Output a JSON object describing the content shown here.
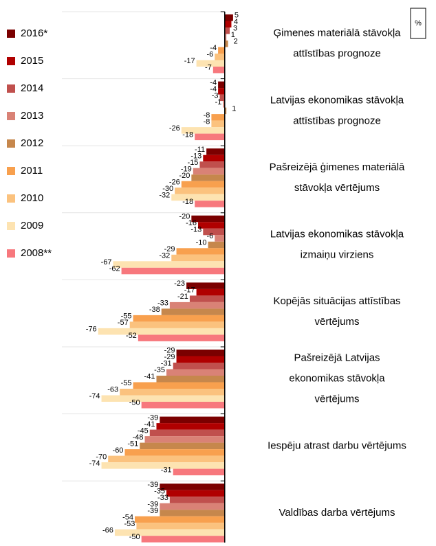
{
  "chart_data": {
    "type": "hbar",
    "unit": "%",
    "categories": [
      [
        "Ģimenes materiālā stāvokļa",
        "attīstības prognoze"
      ],
      [
        "Latvijas ekonomikas stāvokļa",
        "attīstības prognoze"
      ],
      [
        "Pašreizējā ģimenes materiālā",
        "stāvokļa vērtējums"
      ],
      [
        "Latvijas ekonomikas stāvokļa",
        "izmaiņu virziens"
      ],
      [
        "Kopējās situācijas attīstības",
        "vērtējums"
      ],
      [
        "Pašreizējā Latvijas",
        "ekonomikas stāvokļa",
        "vērtējums"
      ],
      [
        "Iespēju atrast darbu vērtējums"
      ],
      [
        "Valdības darba vērtējums"
      ]
    ],
    "series": [
      {
        "name": "2016*",
        "color": "#7b0000",
        "values": [
          5,
          -4,
          -11,
          -20,
          -23,
          -29,
          -39,
          -39
        ]
      },
      {
        "name": "2015",
        "color": "#b00000",
        "values": [
          4,
          -4,
          -13,
          -16,
          -17,
          -29,
          -41,
          -35
        ]
      },
      {
        "name": "2014",
        "color": "#c0504d",
        "values": [
          3,
          -3,
          -15,
          -13,
          -21,
          -31,
          -45,
          -33
        ]
      },
      {
        "name": "2013",
        "color": "#d98276",
        "values": [
          1,
          -1,
          -19,
          -6,
          -33,
          -35,
          -48,
          -39
        ]
      },
      {
        "name": "2012",
        "color": "#c6874c",
        "values": [
          2,
          1,
          -20,
          -10,
          -38,
          -41,
          -51,
          -39
        ]
      },
      {
        "name": "2011",
        "color": "#f8a04e",
        "values": [
          -4,
          -8,
          -26,
          -29,
          -55,
          -55,
          -60,
          -54
        ]
      },
      {
        "name": "2010",
        "color": "#fbc27e",
        "values": [
          -6,
          -8,
          -30,
          -32,
          -57,
          -63,
          -70,
          -53
        ]
      },
      {
        "name": "2009",
        "color": "#fde3b1",
        "values": [
          -17,
          -26,
          -32,
          -67,
          -76,
          -74,
          -74,
          -66
        ]
      },
      {
        "name": "2008**",
        "color": "#f7787d",
        "values": [
          -7,
          -18,
          -18,
          -62,
          -52,
          -50,
          -31,
          -50
        ]
      }
    ],
    "xlim": [
      -80,
      10
    ]
  }
}
